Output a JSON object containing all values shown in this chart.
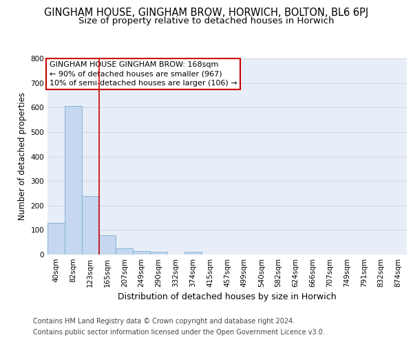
{
  "title": "GINGHAM HOUSE, GINGHAM BROW, HORWICH, BOLTON, BL6 6PJ",
  "subtitle": "Size of property relative to detached houses in Horwich",
  "xlabel": "Distribution of detached houses by size in Horwich",
  "ylabel": "Number of detached properties",
  "categories": [
    "40sqm",
    "82sqm",
    "123sqm",
    "165sqm",
    "207sqm",
    "249sqm",
    "290sqm",
    "332sqm",
    "374sqm",
    "415sqm",
    "457sqm",
    "499sqm",
    "540sqm",
    "582sqm",
    "624sqm",
    "666sqm",
    "707sqm",
    "749sqm",
    "791sqm",
    "832sqm",
    "874sqm"
  ],
  "values": [
    128,
    605,
    238,
    80,
    25,
    13,
    10,
    0,
    10,
    0,
    0,
    0,
    0,
    0,
    0,
    0,
    0,
    0,
    0,
    0,
    0
  ],
  "bar_color": "#c5d8ef",
  "bar_edge_color": "#7aadd4",
  "vline_color": "#cc0000",
  "annotation_text": "GINGHAM HOUSE GINGHAM BROW: 168sqm\n← 90% of detached houses are smaller (967)\n10% of semi-detached houses are larger (106) →",
  "annotation_box_color": "white",
  "annotation_box_edge_color": "#cc0000",
  "ylim": [
    0,
    800
  ],
  "yticks": [
    0,
    100,
    200,
    300,
    400,
    500,
    600,
    700,
    800
  ],
  "grid_color": "#d0dae8",
  "background_color": "#e8eef8",
  "footer_line1": "Contains HM Land Registry data © Crown copyright and database right 2024.",
  "footer_line2": "Contains public sector information licensed under the Open Government Licence v3.0.",
  "title_fontsize": 10.5,
  "subtitle_fontsize": 9.5,
  "xlabel_fontsize": 9,
  "ylabel_fontsize": 8.5,
  "tick_fontsize": 7.5,
  "annotation_fontsize": 8,
  "footer_fontsize": 7
}
